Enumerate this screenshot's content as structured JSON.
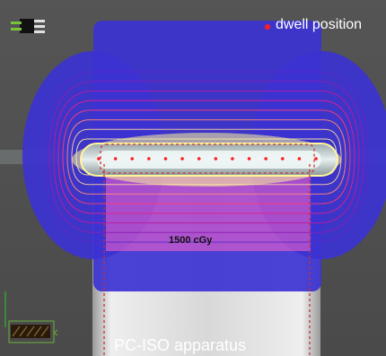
{
  "legend": {
    "marker_label": "dwell position",
    "marker_color": "#ff1e1e"
  },
  "isodose": {
    "label": "1500 cGy",
    "outer_fill": "#3c32d2",
    "level_colors": [
      "#5a28c8",
      "#8c1eb4",
      "#c0189c",
      "#e61e8c",
      "#ff3c78",
      "#ff8a7a",
      "#ffd2a0",
      "#fff59a"
    ]
  },
  "apparatus": {
    "label": "PC-ISO apparatus"
  },
  "dwell_positions": {
    "count": 14,
    "color": "#ff1e1e"
  }
}
